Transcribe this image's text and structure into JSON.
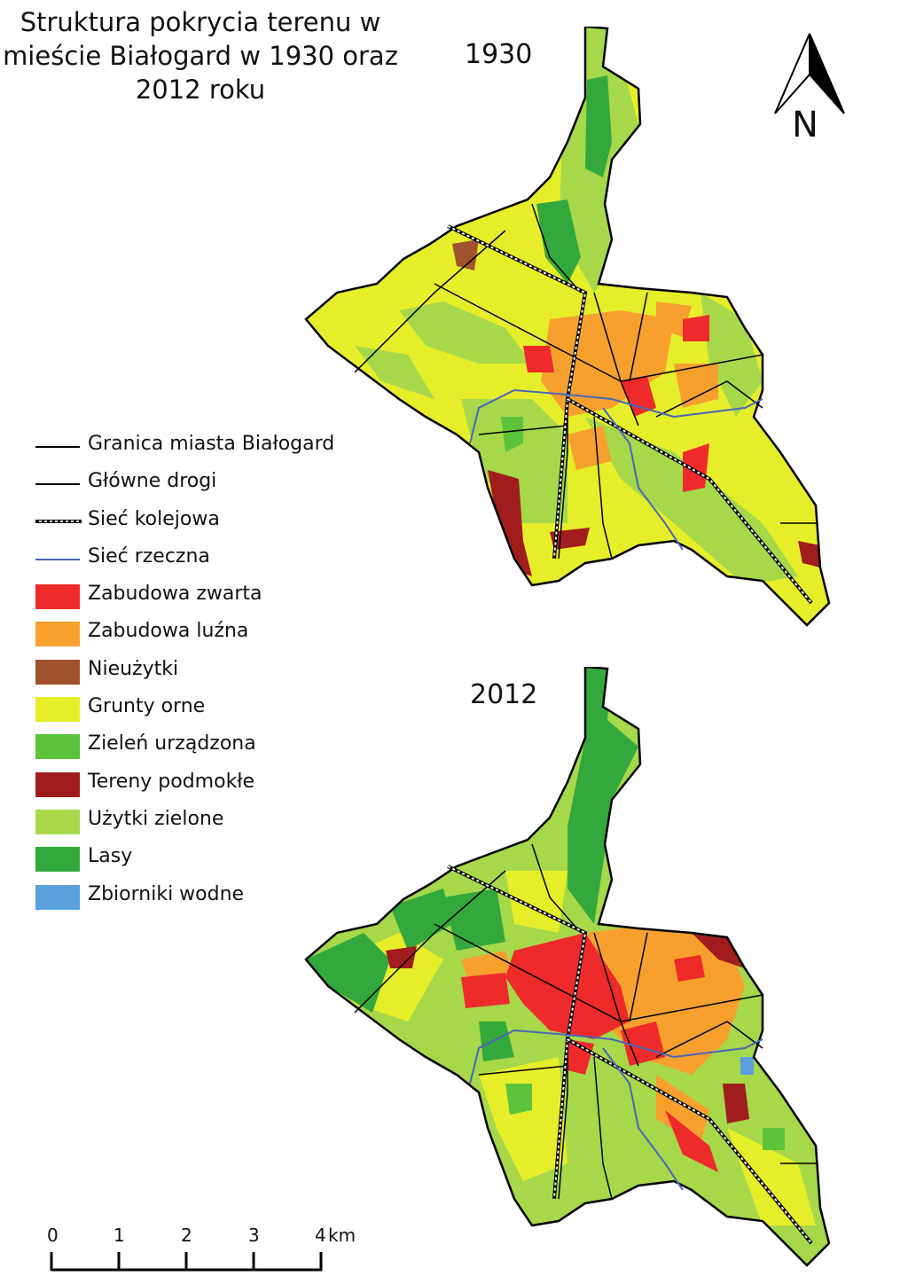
{
  "title": {
    "line1": "Struktura pokrycia terenu w",
    "line2": "mieście Białogard w 1930 oraz",
    "line3": "2012 roku"
  },
  "maps": [
    {
      "year": "1930"
    },
    {
      "year": "2012"
    }
  ],
  "north_arrow": {
    "label": "N",
    "icon": "north-arrow-icon"
  },
  "legend": {
    "items": [
      {
        "label": "Granica miasta Białogard",
        "symbol": "line",
        "color": "#000000"
      },
      {
        "label": "Główne drogi",
        "symbol": "line",
        "color": "#000000"
      },
      {
        "label": "Sieć kolejowa",
        "symbol": "dashed-line",
        "color": "#000000"
      },
      {
        "label": "Sieć rzeczna",
        "symbol": "line",
        "color": "#4a66b8"
      },
      {
        "label": "Zabudowa zwarta",
        "symbol": "fill",
        "color": "#ee2a2a"
      },
      {
        "label": "Zabudowa luźna",
        "symbol": "fill",
        "color": "#f7a02e"
      },
      {
        "label": "Nieużytki",
        "symbol": "fill",
        "color": "#a0522d"
      },
      {
        "label": "Grunty orne",
        "symbol": "fill",
        "color": "#e6ee2a"
      },
      {
        "label": "Zieleń urządzona",
        "symbol": "fill",
        "color": "#5cc33a"
      },
      {
        "label": "Tereny podmokłe",
        "symbol": "fill",
        "color": "#a11d1d"
      },
      {
        "label": "Użytki zielone",
        "symbol": "fill",
        "color": "#a6d84a"
      },
      {
        "label": "Lasy",
        "symbol": "fill",
        "color": "#33a83c"
      },
      {
        "label": "Zbiorniki wodne",
        "symbol": "fill",
        "color": "#5aa0dc"
      }
    ]
  },
  "scale": {
    "ticks": [
      "0",
      "1",
      "2",
      "3",
      "4"
    ],
    "unit": "km"
  }
}
